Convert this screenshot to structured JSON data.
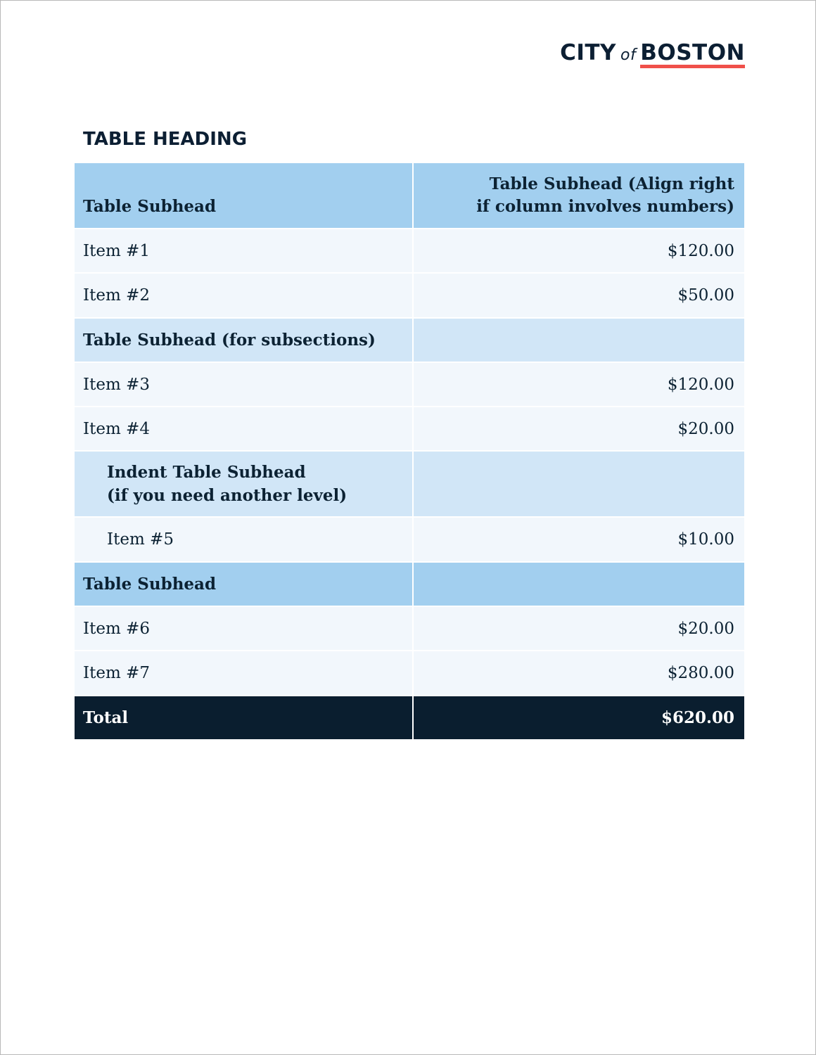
{
  "logo": {
    "city": "CITY",
    "of": "of",
    "boston": "BOSTON",
    "accent_color": "#f0504a"
  },
  "heading": "TABLE HEADING",
  "header": {
    "col1": "Table Subhead",
    "col2_line1": "Table Subhead (Align right",
    "col2_line2": "if column involves numbers)"
  },
  "rows": [
    {
      "type": "item",
      "label": "Item #1",
      "value": "$120.00"
    },
    {
      "type": "item",
      "label": "Item #2",
      "value": "$50.00"
    },
    {
      "type": "subhead",
      "label": "Table Subhead (for subsections)"
    },
    {
      "type": "item",
      "label": "Item #3",
      "value": "$120.00"
    },
    {
      "type": "item",
      "label": "Item #4",
      "value": "$20.00"
    },
    {
      "type": "indent-subhead",
      "line1": "Indent Table Subhead",
      "line2": "(if you need another level)"
    },
    {
      "type": "indent-item",
      "label": "Item #5",
      "value": "$10.00"
    },
    {
      "type": "subhead-strong",
      "label": "Table Subhead"
    },
    {
      "type": "item",
      "label": "Item #6",
      "value": "$20.00"
    },
    {
      "type": "item",
      "label": "Item #7",
      "value": "$280.00"
    }
  ],
  "total": {
    "label": "Total",
    "value": "$620.00"
  },
  "colors": {
    "header": "#a2cfef",
    "subsection": "#d1e6f7",
    "row": "#f2f7fc",
    "total": "#0a1e2f"
  }
}
